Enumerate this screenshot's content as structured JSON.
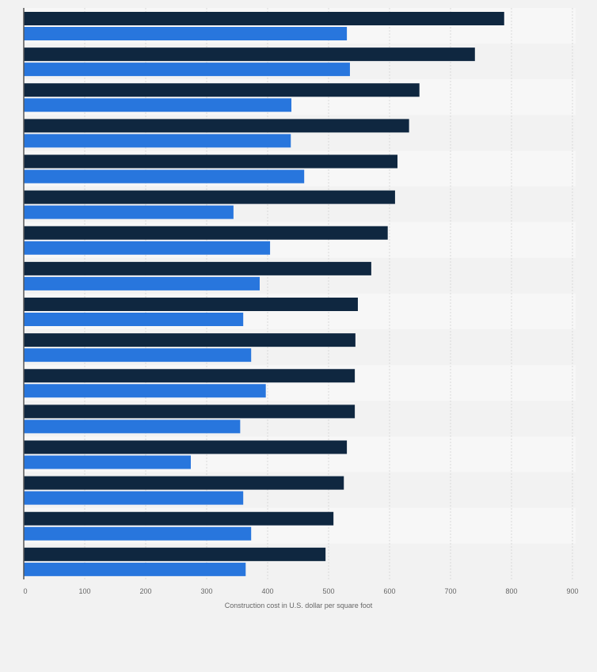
{
  "chart_data": {
    "type": "bar",
    "orientation": "horizontal",
    "title": "",
    "xlabel": "Construction cost in U.S. dollar per square foot",
    "ylabel": "",
    "xlim": [
      0,
      900
    ],
    "x_ticks": [
      "0",
      "100",
      "200",
      "300",
      "400",
      "500",
      "600",
      "700",
      "800",
      "900"
    ],
    "grid": true,
    "categories": [
      "",
      "",
      "",
      "",
      "",
      "",
      "",
      "",
      "",
      "",
      "",
      "",
      "",
      "",
      "",
      ""
    ],
    "series": [
      {
        "color": "#0f2740",
        "values": [
          788,
          740,
          649,
          632,
          613,
          609,
          597,
          570,
          548,
          544,
          543,
          543,
          530,
          525,
          508,
          495
        ]
      },
      {
        "color": "#2876dd",
        "values": [
          530,
          535,
          439,
          438,
          460,
          344,
          404,
          387,
          360,
          373,
          397,
          355,
          274,
          360,
          373,
          364
        ]
      }
    ]
  }
}
